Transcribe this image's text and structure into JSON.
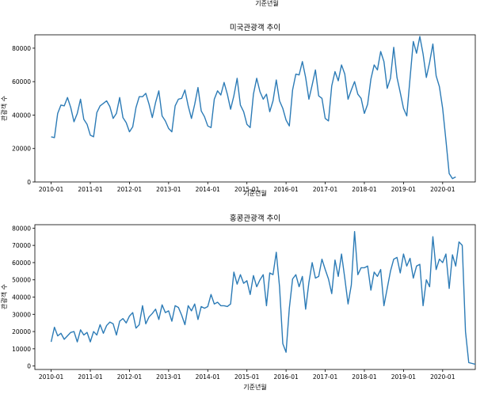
{
  "top_caption": "기준년월",
  "colors": {
    "line": "#2c7bb6",
    "axis": "#000000",
    "background": "#ffffff"
  },
  "chart_data": [
    {
      "type": "line",
      "title": "미국관광객 추이",
      "xlabel": "기준년월",
      "ylabel": "관광객 수",
      "x_start": "2010-01",
      "x_end": "2020-06",
      "x_ticks": [
        "2010-01",
        "2011-01",
        "2012-01",
        "2013-01",
        "2014-01",
        "2015-01",
        "2016-01",
        "2017-01",
        "2018-01",
        "2019-01",
        "2020-01"
      ],
      "ylim": [
        0,
        88000
      ],
      "y_ticks": [
        0,
        20000,
        40000,
        60000,
        80000
      ],
      "grid": false,
      "series": [
        {
          "values": [
            27000,
            26500,
            41000,
            46000,
            45500,
            50500,
            44500,
            36000,
            41000,
            49500,
            37500,
            34500,
            28000,
            27000,
            41500,
            45500,
            47000,
            48500,
            45000,
            38000,
            41000,
            50500,
            38500,
            35500,
            30000,
            33000,
            44500,
            51000,
            51000,
            53000,
            46500,
            38500,
            47500,
            54500,
            39500,
            36500,
            32000,
            30000,
            45500,
            49500,
            50000,
            55000,
            45500,
            38000,
            46500,
            56500,
            42500,
            39000,
            33500,
            32500,
            49500,
            54500,
            52000,
            59500,
            52500,
            43500,
            51500,
            62000,
            46000,
            42000,
            34500,
            32500,
            52500,
            62000,
            54000,
            49500,
            52500,
            42000,
            48500,
            61000,
            48500,
            44000,
            37000,
            33500,
            55000,
            64500,
            64000,
            72000,
            62500,
            49500,
            58000,
            67000,
            51500,
            50000,
            38000,
            36500,
            57500,
            66000,
            60500,
            70000,
            64500,
            49500,
            55000,
            60000,
            52500,
            50000,
            41000,
            46500,
            61500,
            70000,
            67000,
            78000,
            72000,
            56000,
            62000,
            80500,
            62500,
            53500,
            44000,
            39500,
            62000,
            84000,
            77000,
            87000,
            76500,
            62500,
            71500,
            82500,
            63500,
            57000,
            44000,
            25000,
            5000,
            2000,
            3000
          ]
        }
      ]
    },
    {
      "type": "line",
      "title": "홍콩관광객 추이",
      "xlabel": "기준년월",
      "ylabel": "관광객 수",
      "x_start": "2010-01",
      "x_end": "2020-06",
      "x_ticks": [
        "2010-01",
        "2011-01",
        "2012-01",
        "2013-01",
        "2014-01",
        "2015-01",
        "2016-01",
        "2017-01",
        "2018-01",
        "2019-01",
        "2020-01"
      ],
      "ylim": [
        -2000,
        82000
      ],
      "y_ticks": [
        0,
        10000,
        20000,
        30000,
        40000,
        50000,
        60000,
        70000,
        80000
      ],
      "grid": false,
      "series": [
        {
          "values": [
            14000,
            22500,
            17500,
            19000,
            15500,
            17500,
            19500,
            20000,
            14000,
            21000,
            18000,
            19500,
            14000,
            20000,
            18000,
            24000,
            19000,
            23500,
            25500,
            24500,
            18000,
            26000,
            27500,
            25000,
            29000,
            31000,
            22000,
            24000,
            35000,
            24500,
            28500,
            30500,
            33000,
            27000,
            35500,
            31000,
            32000,
            26000,
            35000,
            34000,
            29500,
            24000,
            35000,
            32000,
            36000,
            27000,
            34500,
            33500,
            34500,
            41500,
            36000,
            37000,
            35000,
            35000,
            34500,
            36000,
            54500,
            47500,
            53000,
            48000,
            49500,
            41500,
            52500,
            46000,
            50000,
            53000,
            35000,
            54000,
            53000,
            66000,
            46000,
            13000,
            8000,
            33500,
            50500,
            53000,
            46000,
            52000,
            33000,
            48500,
            60000,
            51000,
            52000,
            62000,
            56000,
            50500,
            42000,
            61500,
            52000,
            65000,
            51000,
            36000,
            47000,
            78000,
            53000,
            57000,
            57000,
            58000,
            44000,
            54500,
            52000,
            56000,
            35000,
            45000,
            55000,
            62000,
            63000,
            54000,
            65000,
            58000,
            62500,
            51000,
            58000,
            59000,
            35000,
            50000,
            46000,
            75000,
            56000,
            62000,
            60000,
            65000,
            45000,
            64500,
            58000,
            72000,
            70000,
            20000,
            2000,
            1500,
            1000
          ]
        }
      ]
    }
  ]
}
